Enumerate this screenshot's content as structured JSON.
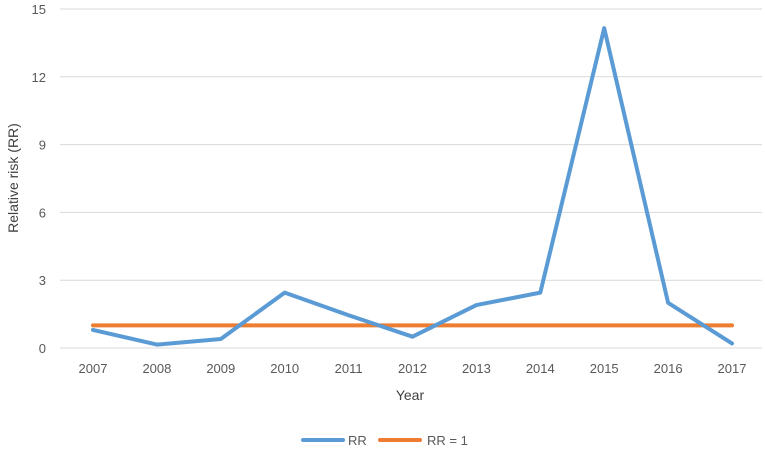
{
  "chart_data": {
    "type": "line",
    "categories": [
      "2007",
      "2008",
      "2009",
      "2010",
      "2011",
      "2012",
      "2013",
      "2014",
      "2015",
      "2016",
      "2017"
    ],
    "series": [
      {
        "name": "RR",
        "color": "#5b9bd5",
        "values": [
          0.8,
          0.15,
          0.4,
          2.45,
          1.45,
          0.5,
          1.9,
          2.45,
          14.15,
          2.0,
          0.2
        ]
      },
      {
        "name": "RR = 1",
        "color": "#ed7d31",
        "values": [
          1,
          1,
          1,
          1,
          1,
          1,
          1,
          1,
          1,
          1,
          1
        ]
      }
    ],
    "title": "",
    "xlabel": "Year",
    "ylabel": "Relative risk (RR)",
    "ylim": [
      0,
      15
    ],
    "yticks": [
      "0",
      "3",
      "6",
      "9",
      "12",
      "15"
    ],
    "grid": true,
    "legend_position": "bottom"
  }
}
